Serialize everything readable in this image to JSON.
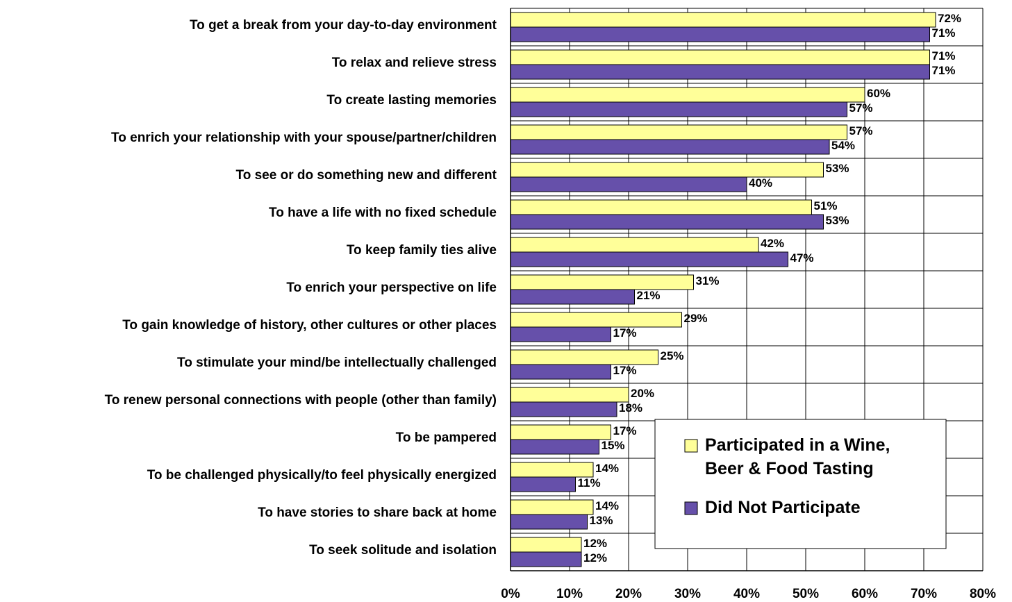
{
  "chart_data": {
    "type": "hbar",
    "categories": [
      "To get a break from your day-to-day environment",
      "To relax and relieve stress",
      "To create lasting memories",
      "To enrich your relationship with your spouse/partner/children",
      "To see or do something new and different",
      "To have a life with no fixed schedule",
      "To keep family ties alive",
      "To enrich your perspective on life",
      "To gain knowledge of history, other cultures or other places",
      "To stimulate your mind/be intellectually challenged",
      "To renew personal connections with people (other than family)",
      "To be pampered",
      "To be challenged physically/to feel physically energized",
      "To have stories to share back at home",
      "To seek solitude and isolation"
    ],
    "series": [
      {
        "name": "Participated in a Wine, Beer & Food Tasting",
        "color": "#ffff99",
        "values": [
          72,
          71,
          60,
          57,
          53,
          51,
          42,
          31,
          29,
          25,
          20,
          17,
          14,
          14,
          12
        ],
        "value_labels": [
          "72%",
          "71%",
          "60%",
          "57%",
          "53%",
          "51%",
          "42%",
          "31%",
          "29%",
          "25%",
          "20%",
          "17%",
          "14%",
          "14%",
          "12%"
        ]
      },
      {
        "name": "Did Not Participate",
        "color": "#6650aa",
        "values": [
          71,
          71,
          57,
          54,
          40,
          53,
          47,
          21,
          17,
          17,
          18,
          15,
          11,
          13,
          12
        ],
        "value_labels": [
          "71%",
          "71%",
          "57%",
          "54%",
          "40%",
          "53%",
          "47%",
          "21%",
          "17%",
          "17%",
          "18%",
          "15%",
          "11%",
          "13%",
          "12%"
        ]
      }
    ],
    "xlim": [
      0,
      80
    ],
    "xticks": [
      {
        "value": 0,
        "label": "0%"
      },
      {
        "value": 10,
        "label": "10%"
      },
      {
        "value": 20,
        "label": "20%"
      },
      {
        "value": 30,
        "label": "30%"
      },
      {
        "value": 40,
        "label": "40%"
      },
      {
        "value": 50,
        "label": "50%"
      },
      {
        "value": 60,
        "label": "60%"
      },
      {
        "value": 70,
        "label": "70%"
      },
      {
        "value": 80,
        "label": "80%"
      }
    ],
    "grid": true,
    "legend": "lower right"
  }
}
